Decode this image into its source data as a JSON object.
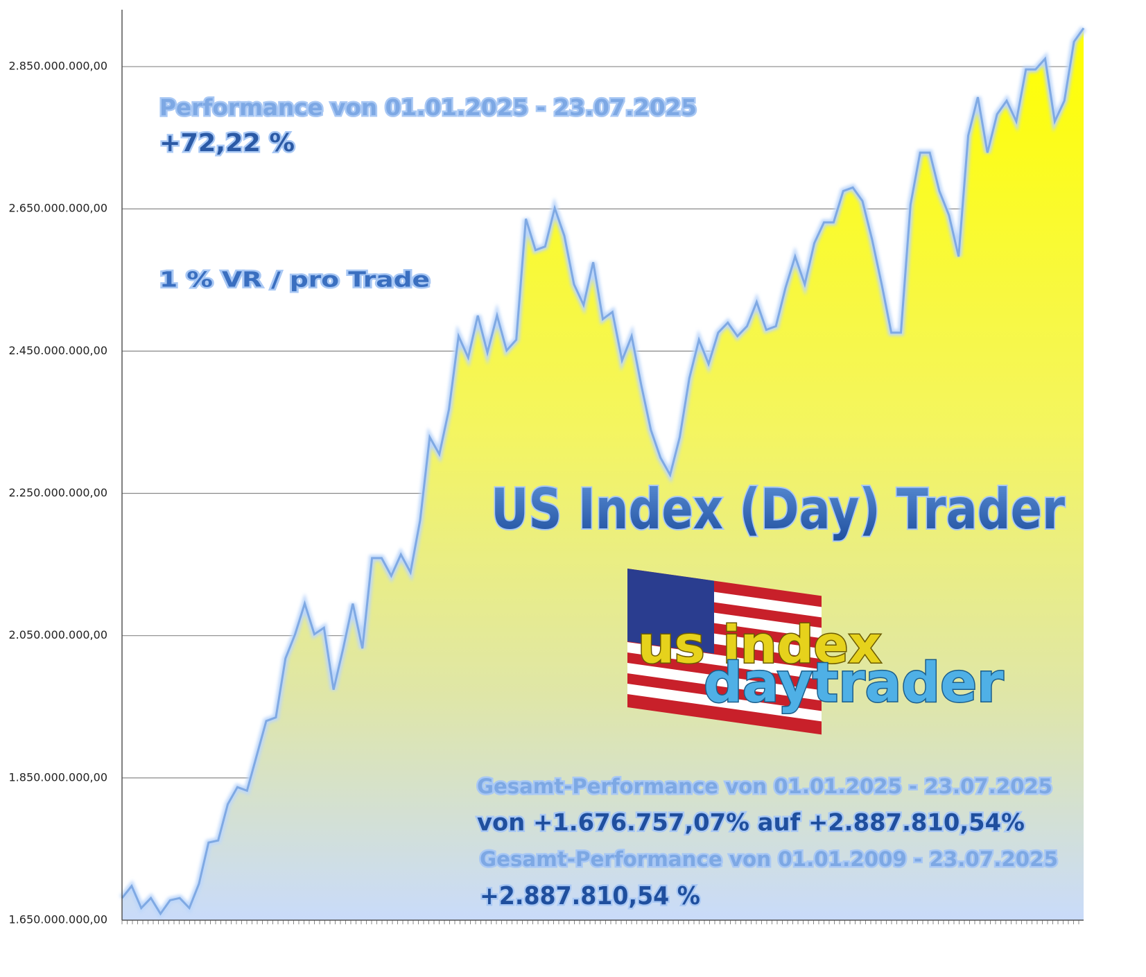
{
  "chart_data": {
    "type": "area",
    "title": "US Index (Day) Trader",
    "annotations": [
      "Performance  von  01.01.2025 - 23.07.2025",
      "+72,22 %",
      "1 % VR / pro Trade",
      "Gesamt-Performance  von  01.01.2025 - 23.07.2025",
      "von +1.676.757,07% auf  +2.887.810,54%",
      "Gesamt-Performance  von  01.01.2009 - 23.07.2025",
      "+2.887.810,54 %"
    ],
    "logo": [
      "us index",
      "daytrader"
    ],
    "color": "#7fa9e3",
    "grid": true,
    "ylim": [
      1650000000,
      2930000000
    ],
    "yticks": [
      {
        "value": 1650000000,
        "label": "1.650.000.000,00"
      },
      {
        "value": 1850000000,
        "label": "1.850.000.000,00"
      },
      {
        "value": 2050000000,
        "label": "2.050.000.000,00"
      },
      {
        "value": 2250000000,
        "label": "2.250.000.000,00"
      },
      {
        "value": 2450000000,
        "label": "2.450.000.000,00"
      },
      {
        "value": 2650000000,
        "label": "2.650.000.000,00"
      },
      {
        "value": 2850000000,
        "label": "2.850.000.000,00"
      }
    ],
    "values": [
      1681000000,
      1698000000,
      1667000000,
      1681000000,
      1659000000,
      1678000000,
      1681000000,
      1667000000,
      1701000000,
      1759000000,
      1762000000,
      1813000000,
      1837000000,
      1832000000,
      1881000000,
      1930000000,
      1935000000,
      2018000000,
      2052000000,
      2095000000,
      2052000000,
      2061000000,
      1974000000,
      2032000000,
      2095000000,
      2032000000,
      2159000000,
      2159000000,
      2134000000,
      2164000000,
      2139000000,
      2212000000,
      2329000000,
      2305000000,
      2368000000,
      2471000000,
      2441000000,
      2500000000,
      2448000000,
      2500000000,
      2451000000,
      2466000000,
      2636000000,
      2592000000,
      2597000000,
      2651000000,
      2612000000,
      2544000000,
      2515000000,
      2575000000,
      2495000000,
      2505000000,
      2437000000,
      2471000000,
      2402000000,
      2339000000,
      2300000000,
      2276000000,
      2329000000,
      2412000000,
      2466000000,
      2432000000,
      2476000000,
      2490000000,
      2471000000,
      2485000000,
      2519000000,
      2480000000,
      2485000000,
      2539000000,
      2583000000,
      2544000000,
      2602000000,
      2631000000,
      2631000000,
      2675000000,
      2680000000,
      2661000000,
      2607000000,
      2544000000,
      2476000000,
      2476000000,
      2656000000,
      2729000000,
      2729000000,
      2675000000,
      2641000000,
      2583000000,
      2753000000,
      2807000000,
      2729000000,
      2783000000,
      2802000000,
      2773000000,
      2846000000,
      2846000000,
      2861000000,
      2773000000,
      2802000000,
      2885000000,
      2904000000
    ]
  }
}
